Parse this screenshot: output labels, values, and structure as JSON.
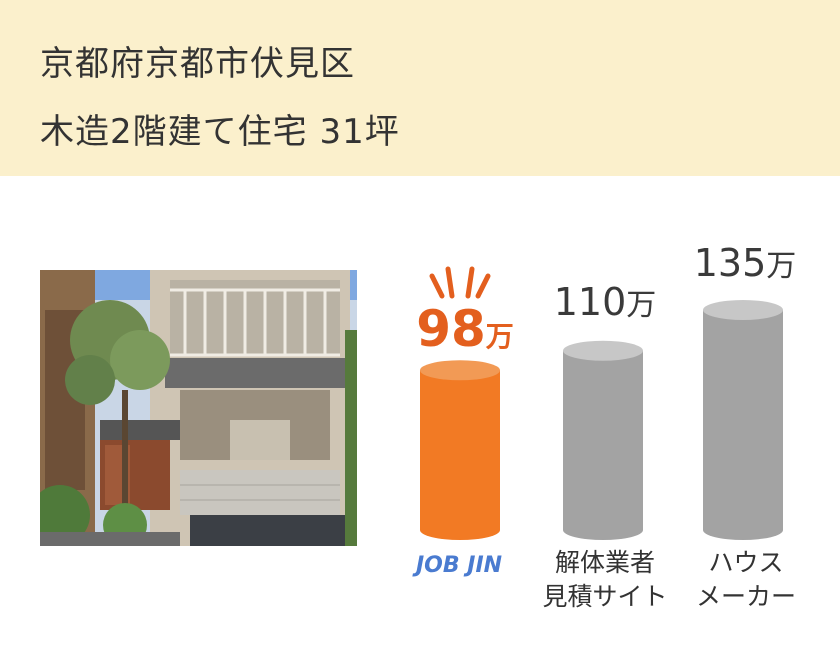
{
  "header": {
    "line1": "京都府京都市伏見区",
    "line2": "木造2階建て住宅 31坪"
  },
  "photo": {
    "icon": "house-photo"
  },
  "chart_data": {
    "type": "bar",
    "categories": [
      "JOB JIN",
      "解体業者見積サイト",
      "ハウスメーカー"
    ],
    "values": [
      98,
      110,
      135
    ],
    "unit": "万",
    "colors": [
      "#f27a24",
      "#a3a3a3",
      "#a3a3a3"
    ]
  },
  "bars": {
    "job": {
      "value": "98",
      "unit": "万"
    },
    "dealer": {
      "value": "110",
      "unit": "万",
      "label_line1": "解体業者",
      "label_line2": "見積サイト"
    },
    "maker": {
      "value": "135",
      "unit": "万",
      "label_line1": "ハウス",
      "label_line2": "メーカー"
    }
  },
  "logo": {
    "text": "JOB JIN"
  }
}
